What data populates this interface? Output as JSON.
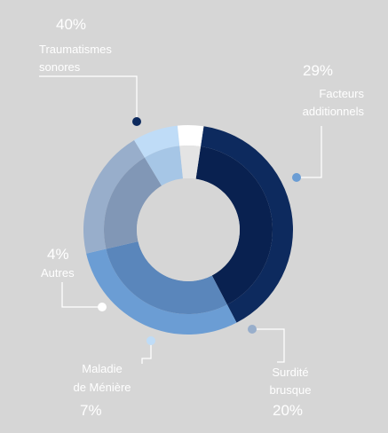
{
  "chart_data": {
    "type": "pie",
    "style": "donut",
    "slices": [
      {
        "label_lines": [
          "Traumatismes",
          "sonores"
        ],
        "value": 40,
        "percent_label": "40%",
        "color": "#0d2a5e",
        "inner_color": "#092150"
      },
      {
        "label_lines": [
          "Facteurs",
          "additionnels"
        ],
        "value": 29,
        "percent_label": "29%",
        "color": "#6b9dd4",
        "inner_color": "#5a86bb"
      },
      {
        "label_lines": [
          "Surdité",
          "brusque"
        ],
        "value": 20,
        "percent_label": "20%",
        "color": "#98aecb",
        "inner_color": "#8197b6"
      },
      {
        "label_lines": [
          "Maladie",
          "de Ménière"
        ],
        "value": 7,
        "percent_label": "7%",
        "color": "#bfdcf7",
        "inner_color": "#a6c6e6"
      },
      {
        "label_lines": [
          "Autres"
        ],
        "value": 4,
        "percent_label": "4%",
        "color": "#ffffff",
        "inner_color": "#e4e4e4"
      }
    ]
  }
}
